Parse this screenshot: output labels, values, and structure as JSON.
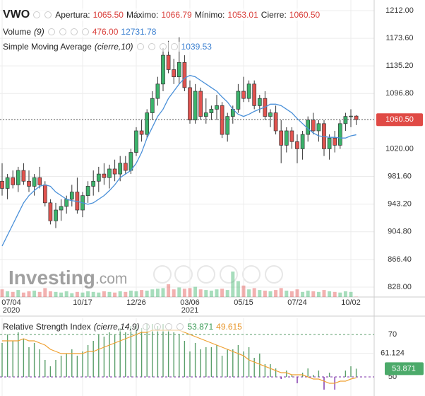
{
  "chart_data": [
    {
      "type": "candlestick",
      "title": "VWO",
      "header": {
        "open_label": "Apertura:",
        "open": "1065.50",
        "high_label": "Máximo:",
        "high": "1066.79",
        "low_label": "Mínimo:",
        "low": "1053.01",
        "close_label": "Cierre:",
        "close": "1060.50"
      },
      "categories": [
        "07/04",
        null,
        null,
        null,
        null,
        null,
        null,
        null,
        null,
        null,
        null,
        null,
        null,
        null,
        null,
        "10/17",
        null,
        null,
        null,
        null,
        null,
        null,
        null,
        null,
        null,
        "12/26",
        null,
        null,
        null,
        null,
        null,
        null,
        null,
        null,
        null,
        "03/06",
        null,
        null,
        null,
        null,
        null,
        null,
        null,
        null,
        null,
        "05/15",
        null,
        null,
        null,
        null,
        null,
        null,
        null,
        null,
        null,
        "07/24",
        null,
        null,
        null,
        null,
        null,
        null,
        null,
        null,
        null,
        "10/02",
        null
      ],
      "category_years": [
        "2020",
        null,
        null,
        null,
        null,
        null,
        null,
        null,
        null,
        null,
        null,
        null,
        null,
        null,
        null,
        null,
        null,
        null,
        null,
        null,
        null,
        null,
        null,
        null,
        null,
        null,
        null,
        null,
        null,
        null,
        null,
        null,
        null,
        null,
        null,
        "2021",
        null,
        null,
        null,
        null,
        null,
        null,
        null,
        null,
        null,
        null,
        null,
        null,
        null,
        null,
        null,
        null,
        null,
        null,
        null,
        null,
        null,
        null,
        null,
        null,
        null,
        null,
        null,
        null,
        null,
        null,
        null
      ],
      "open": [
        975,
        965,
        980,
        970,
        990,
        975,
        968,
        980,
        970,
        945,
        920,
        935,
        940,
        950,
        960,
        935,
        955,
        968,
        975,
        985,
        980,
        992,
        985,
        1000,
        990,
        1015,
        1045,
        1040,
        1070,
        1090,
        1110,
        1150,
        1130,
        1120,
        1140,
        1105,
        1060,
        1100,
        1065,
        1070,
        1075,
        1080,
        1040,
        1065,
        1075,
        1100,
        1090,
        1110,
        1080,
        1090,
        1065,
        1070,
        1045,
        1025,
        1045,
        1030,
        1020,
        1040,
        1060,
        1045,
        1055,
        1020,
        1035,
        1025,
        1055,
        1065,
        1065.5
      ],
      "high": [
        1000,
        985,
        990,
        995,
        1000,
        990,
        985,
        995,
        975,
        950,
        945,
        950,
        955,
        970,
        980,
        960,
        975,
        990,
        995,
        1000,
        998,
        1005,
        1010,
        1010,
        1020,
        1050,
        1060,
        1075,
        1100,
        1120,
        1160,
        1170,
        1145,
        1175,
        1150,
        1115,
        1110,
        1105,
        1090,
        1080,
        1095,
        1085,
        1070,
        1080,
        1110,
        1120,
        1115,
        1115,
        1095,
        1100,
        1075,
        1080,
        1060,
        1050,
        1050,
        1040,
        1045,
        1065,
        1070,
        1060,
        1060,
        1040,
        1045,
        1060,
        1070,
        1075,
        1066.79
      ],
      "low": [
        955,
        950,
        965,
        960,
        970,
        960,
        955,
        965,
        940,
        915,
        910,
        920,
        930,
        940,
        930,
        925,
        945,
        955,
        960,
        970,
        965,
        975,
        975,
        985,
        985,
        1010,
        1030,
        1035,
        1060,
        1080,
        1100,
        1125,
        1110,
        1110,
        1100,
        1055,
        1055,
        1060,
        1055,
        1060,
        1060,
        1035,
        1030,
        1055,
        1070,
        1085,
        1085,
        1075,
        1070,
        1060,
        1050,
        1040,
        1000,
        1015,
        1020,
        1000,
        1005,
        1030,
        1040,
        1030,
        1010,
        1005,
        1015,
        1020,
        1045,
        1050,
        1053.01
      ],
      "close": [
        965,
        980,
        970,
        990,
        975,
        968,
        980,
        970,
        945,
        920,
        935,
        940,
        950,
        960,
        935,
        955,
        968,
        975,
        985,
        980,
        992,
        985,
        1000,
        990,
        1015,
        1045,
        1040,
        1070,
        1090,
        1110,
        1150,
        1130,
        1120,
        1140,
        1105,
        1060,
        1100,
        1065,
        1070,
        1075,
        1080,
        1040,
        1065,
        1075,
        1100,
        1090,
        1110,
        1080,
        1090,
        1065,
        1070,
        1045,
        1025,
        1045,
        1030,
        1020,
        1040,
        1060,
        1045,
        1055,
        1020,
        1035,
        1025,
        1055,
        1065,
        1065.5,
        1060.5
      ],
      "up_color": "#3bb36b",
      "down_color": "#e2534f",
      "price_color": "#e04a45",
      "ylim": [
        814.2,
        1226.7
      ],
      "yticks": [
        {
          "value": 1212,
          "label": "1212.00"
        },
        {
          "value": 1173.6,
          "label": "1173.60"
        },
        {
          "value": 1135.2,
          "label": "1135.20"
        },
        {
          "value": 1096.8,
          "label": "1096.80"
        },
        {
          "value": 1020,
          "label": "1020.00"
        },
        {
          "value": 981.6,
          "label": "981.60"
        },
        {
          "value": 943.2,
          "label": "943.20"
        },
        {
          "value": 904.8,
          "label": "904.80"
        },
        {
          "value": 866.4,
          "label": "866.40"
        },
        {
          "value": 828,
          "label": "828.00"
        }
      ],
      "grid": true,
      "watermark": "Investing",
      "watermark_suffix": ".com",
      "volume": {
        "name": "Volume",
        "params": "(9)",
        "last": "476.00",
        "average": "12731.78",
        "values": [
          12000,
          9000,
          8000,
          11000,
          7000,
          9000,
          10000,
          8000,
          14000,
          9000,
          8000,
          7000,
          9000,
          6000,
          8000,
          7000,
          9000,
          8000,
          7000,
          9000,
          8000,
          7000,
          9000,
          8000,
          10000,
          9000,
          11000,
          10000,
          12000,
          13000,
          14000,
          20000,
          12000,
          15000,
          13000,
          14000,
          16000,
          12000,
          11000,
          10000,
          12000,
          13000,
          11000,
          40000,
          25000,
          18000,
          12000,
          14000,
          11000,
          10000,
          9000,
          11000,
          14000,
          10000,
          9000,
          12000,
          8000,
          10000,
          9000,
          8000,
          11000,
          9000,
          8000,
          7000,
          9000,
          8000,
          476
        ]
      },
      "sma": {
        "name": "Simple Moving Average",
        "params": "(cierre,10)",
        "last": "1039.53",
        "color": "#4a90d9",
        "values": [
          885,
          900,
          915,
          930,
          945,
          955,
          962,
          968,
          970,
          968,
          960,
          955,
          950,
          948,
          947,
          945,
          943,
          945,
          950,
          955,
          962,
          970,
          980,
          985,
          990,
          1000,
          1015,
          1035,
          1050,
          1065,
          1075,
          1090,
          1100,
          1110,
          1118,
          1122,
          1120,
          1115,
          1110,
          1105,
          1100,
          1092,
          1085,
          1075,
          1068,
          1065,
          1068,
          1072,
          1075,
          1078,
          1082,
          1082,
          1080,
          1075,
          1070,
          1062,
          1055,
          1048,
          1042,
          1038,
          1037,
          1036,
          1036,
          1035,
          1035,
          1038,
          1039.53
        ]
      }
    },
    {
      "type": "rsi",
      "title": "Relative Strength Index",
      "params": "(cierre,14,9)",
      "ylim": [
        42.67,
        76
      ],
      "yticks": [
        70,
        61.124,
        50
      ],
      "rsi": {
        "color": "#5a9e6a",
        "below_color": "#7b2fa8",
        "tag_color": "#4caa6a",
        "last": "53.871",
        "values": [
          66,
          70,
          67,
          71,
          68,
          64,
          66,
          63,
          58,
          55,
          58,
          60,
          61,
          63,
          60,
          62,
          65,
          67,
          70,
          69,
          71,
          70,
          73,
          71,
          74,
          75,
          73,
          75,
          75,
          74,
          75,
          72,
          71,
          70,
          67,
          62,
          66,
          63,
          64,
          64,
          65,
          60,
          63,
          63,
          65,
          62,
          64,
          59,
          61,
          56,
          56,
          54,
          49,
          53,
          51,
          47,
          52,
          54,
          51,
          53,
          44,
          52,
          44,
          50,
          53,
          55,
          53.871
        ]
      },
      "signal": {
        "color": "#f0a030",
        "last": "49.615",
        "values": [
          67,
          67,
          67,
          67,
          68,
          67,
          67,
          66,
          65,
          63,
          62,
          61,
          61,
          61,
          61,
          61,
          62,
          62,
          63,
          64,
          65,
          66,
          67,
          68,
          69,
          70,
          71,
          71,
          72,
          72,
          72,
          72,
          72,
          72,
          71,
          70,
          69,
          68,
          67,
          66,
          65,
          64,
          63,
          62,
          61,
          60,
          58,
          57,
          56,
          55,
          54,
          53,
          52,
          52,
          51,
          51,
          51,
          50,
          49,
          49,
          48,
          47,
          47,
          48,
          48,
          49,
          49.615
        ]
      }
    }
  ]
}
